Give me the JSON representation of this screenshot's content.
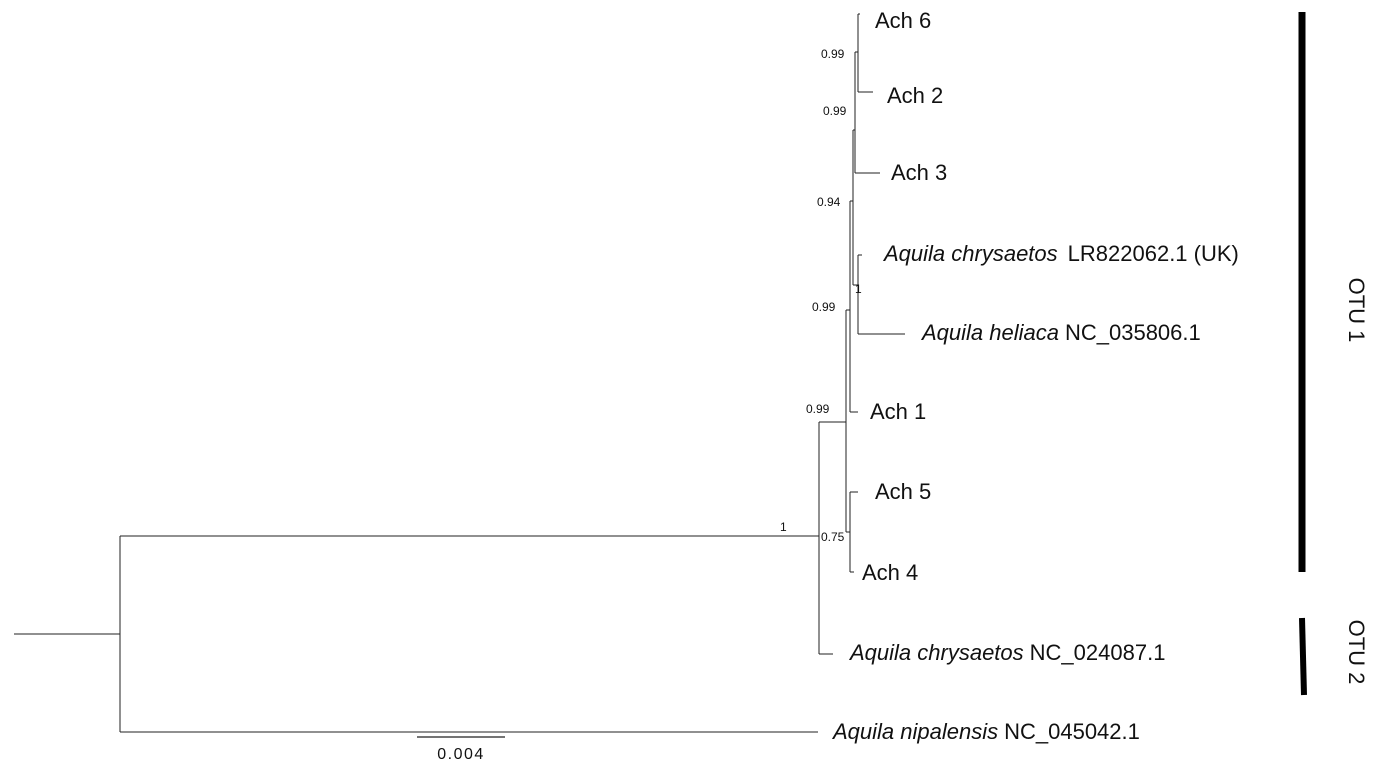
{
  "tips": [
    {
      "label": "Ach 6"
    },
    {
      "label": "Ach 2"
    },
    {
      "label": "Ach 3"
    },
    {
      "species": "Aquila chrysaetos",
      "accession": "LR822062.1 (UK)"
    },
    {
      "species": "Aquila heliaca",
      "accession": "NC_035806.1"
    },
    {
      "label": "Ach 1"
    },
    {
      "label": "Ach 5"
    },
    {
      "label": "Ach 4"
    },
    {
      "species": "Aquila chrysaetos",
      "accession": "NC_024087.1"
    },
    {
      "species": "Aquila nipalensis",
      "accession": "NC_045042.1"
    }
  ],
  "support": [
    "0.99",
    "0.99",
    "0.94",
    "1",
    "0.99",
    "0.99",
    "1",
    "0.75"
  ],
  "scale_bar": "0.004",
  "clades": [
    "OTU 1",
    "OTU 2"
  ]
}
